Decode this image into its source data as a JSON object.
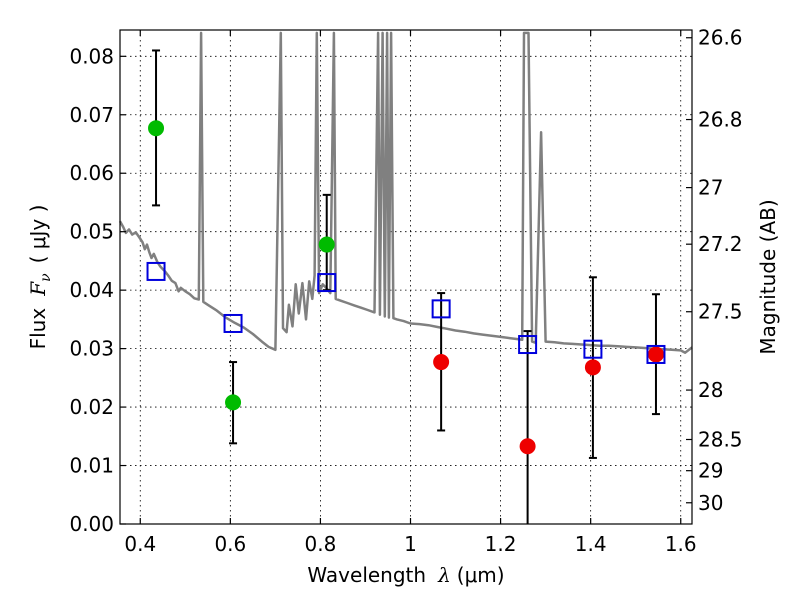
{
  "chart_data": {
    "type": "scatter",
    "xlabel": "Wavelength",
    "xlabel_symbol": "λ",
    "xlabel_unit": "(μm)",
    "ylabel": "Flux",
    "ylabel_symbol": "F",
    "ylabel_subscript": "ν",
    "ylabel_unit": "( μJy )",
    "y2label": "Magnitude (AB)",
    "xlim": [
      0.355,
      1.625
    ],
    "ylim": [
      0,
      0.0845
    ],
    "grid": true,
    "x_ticks": [
      0.4,
      0.6,
      0.8,
      1.0,
      1.2,
      1.4,
      1.6
    ],
    "x_tick_labels": [
      "0.4",
      "0.6",
      "0.8",
      "1",
      "1.2",
      "1.4",
      "1.6"
    ],
    "y_ticks": [
      0.0,
      0.01,
      0.02,
      0.03,
      0.04,
      0.05,
      0.06,
      0.07,
      0.08
    ],
    "y_tick_labels": [
      "0.00",
      "0.01",
      "0.02",
      "0.03",
      "0.04",
      "0.05",
      "0.06",
      "0.07",
      "0.08"
    ],
    "y2_ticks": [
      26.6,
      26.8,
      27,
      27.2,
      27.5,
      28,
      28.5,
      29,
      30
    ],
    "y2_tick_labels": [
      "26.6",
      "26.8",
      "27",
      "27.2",
      "27.5",
      "28",
      "28.5",
      "29",
      "30"
    ],
    "series": [
      {
        "marker": "circle",
        "color": "#00bb00",
        "points": [
          {
            "x": 0.435,
            "y": 0.0677,
            "err_low": 0.0545,
            "err_high": 0.081
          },
          {
            "x": 0.606,
            "y": 0.0208,
            "err_low": 0.0138,
            "err_high": 0.0277
          },
          {
            "x": 0.814,
            "y": 0.0478,
            "err_low": 0.04,
            "err_high": 0.0563
          }
        ]
      },
      {
        "marker": "circle",
        "color": "#ee0000",
        "points": [
          {
            "x": 1.068,
            "y": 0.0277,
            "err_low": 0.016,
            "err_high": 0.0395
          },
          {
            "x": 1.26,
            "y": 0.0133,
            "err_low": 0.0,
            "err_high": 0.033
          },
          {
            "x": 1.405,
            "y": 0.0268,
            "err_low": 0.0113,
            "err_high": 0.0422
          },
          {
            "x": 1.545,
            "y": 0.029,
            "err_low": 0.0188,
            "err_high": 0.0393
          }
        ]
      },
      {
        "marker": "open-square",
        "color": "#0000dd",
        "points": [
          {
            "x": 0.435,
            "y": 0.0432
          },
          {
            "x": 0.606,
            "y": 0.0343
          },
          {
            "x": 0.814,
            "y": 0.0413
          },
          {
            "x": 1.068,
            "y": 0.0368
          },
          {
            "x": 1.26,
            "y": 0.0307
          },
          {
            "x": 1.405,
            "y": 0.0299
          },
          {
            "x": 1.545,
            "y": 0.029
          }
        ]
      },
      {
        "marker": "line",
        "color": "#808080",
        "points": [
          [
            0.355,
            0.0518
          ],
          [
            0.362,
            0.0508
          ],
          [
            0.368,
            0.0498
          ],
          [
            0.375,
            0.0504
          ],
          [
            0.382,
            0.0495
          ],
          [
            0.39,
            0.0499
          ],
          [
            0.398,
            0.049
          ],
          [
            0.405,
            0.0482
          ],
          [
            0.41,
            0.047
          ],
          [
            0.415,
            0.0478
          ],
          [
            0.42,
            0.0465
          ],
          [
            0.425,
            0.0455
          ],
          [
            0.43,
            0.0462
          ],
          [
            0.438,
            0.0448
          ],
          [
            0.445,
            0.044
          ],
          [
            0.455,
            0.0432
          ],
          [
            0.462,
            0.0425
          ],
          [
            0.47,
            0.0416
          ],
          [
            0.478,
            0.0412
          ],
          [
            0.485,
            0.0398
          ],
          [
            0.49,
            0.0404
          ],
          [
            0.5,
            0.0398
          ],
          [
            0.51,
            0.0393
          ],
          [
            0.52,
            0.0386
          ],
          [
            0.53,
            0.0384
          ],
          [
            0.535,
            0.084
          ],
          [
            0.54,
            0.038
          ],
          [
            0.55,
            0.0375
          ],
          [
            0.57,
            0.0365
          ],
          [
            0.59,
            0.0353
          ],
          [
            0.61,
            0.0344
          ],
          [
            0.63,
            0.0336
          ],
          [
            0.65,
            0.0325
          ],
          [
            0.67,
            0.0312
          ],
          [
            0.685,
            0.0303
          ],
          [
            0.7,
            0.0298
          ],
          [
            0.712,
            0.084
          ],
          [
            0.717,
            0.0335
          ],
          [
            0.725,
            0.0328
          ],
          [
            0.73,
            0.0375
          ],
          [
            0.738,
            0.0338
          ],
          [
            0.745,
            0.041
          ],
          [
            0.752,
            0.036
          ],
          [
            0.76,
            0.0412
          ],
          [
            0.768,
            0.035
          ],
          [
            0.775,
            0.0415
          ],
          [
            0.782,
            0.0385
          ],
          [
            0.787,
            0.0425
          ],
          [
            0.792,
            0.084
          ],
          [
            0.797,
            0.0395
          ],
          [
            0.805,
            0.041
          ],
          [
            0.815,
            0.0402
          ],
          [
            0.822,
            0.0395
          ],
          [
            0.83,
            0.084
          ],
          [
            0.834,
            0.0385
          ],
          [
            0.845,
            0.0382
          ],
          [
            0.86,
            0.0378
          ],
          [
            0.875,
            0.0374
          ],
          [
            0.89,
            0.037
          ],
          [
            0.905,
            0.0366
          ],
          [
            0.92,
            0.0362
          ],
          [
            0.928,
            0.084
          ],
          [
            0.932,
            0.0358
          ],
          [
            0.938,
            0.084
          ],
          [
            0.943,
            0.0355
          ],
          [
            0.948,
            0.084
          ],
          [
            0.952,
            0.0353
          ],
          [
            0.957,
            0.084
          ],
          [
            0.962,
            0.0352
          ],
          [
            0.97,
            0.035
          ],
          [
            0.985,
            0.0347
          ],
          [
            1.0,
            0.0343
          ],
          [
            1.02,
            0.0342
          ],
          [
            1.04,
            0.034
          ],
          [
            1.06,
            0.0337
          ],
          [
            1.08,
            0.0334
          ],
          [
            1.1,
            0.0331
          ],
          [
            1.12,
            0.0329
          ],
          [
            1.14,
            0.0326
          ],
          [
            1.16,
            0.0324
          ],
          [
            1.18,
            0.0322
          ],
          [
            1.2,
            0.032
          ],
          [
            1.22,
            0.0318
          ],
          [
            1.24,
            0.0316
          ],
          [
            1.248,
            0.0315
          ],
          [
            1.252,
            0.084
          ],
          [
            1.262,
            0.084
          ],
          [
            1.27,
            0.0312
          ],
          [
            1.278,
            0.031
          ],
          [
            1.29,
            0.067
          ],
          [
            1.3,
            0.0312
          ],
          [
            1.32,
            0.0311
          ],
          [
            1.34,
            0.0309
          ],
          [
            1.36,
            0.0308
          ],
          [
            1.38,
            0.0307
          ],
          [
            1.4,
            0.0306
          ],
          [
            1.42,
            0.0305
          ],
          [
            1.44,
            0.0305
          ],
          [
            1.46,
            0.0304
          ],
          [
            1.48,
            0.0303
          ],
          [
            1.5,
            0.0302
          ],
          [
            1.52,
            0.0301
          ],
          [
            1.54,
            0.03
          ],
          [
            1.56,
            0.0299
          ],
          [
            1.58,
            0.0298
          ],
          [
            1.6,
            0.0297
          ],
          [
            1.61,
            0.0293
          ],
          [
            1.625,
            0.0302
          ]
        ]
      }
    ]
  }
}
